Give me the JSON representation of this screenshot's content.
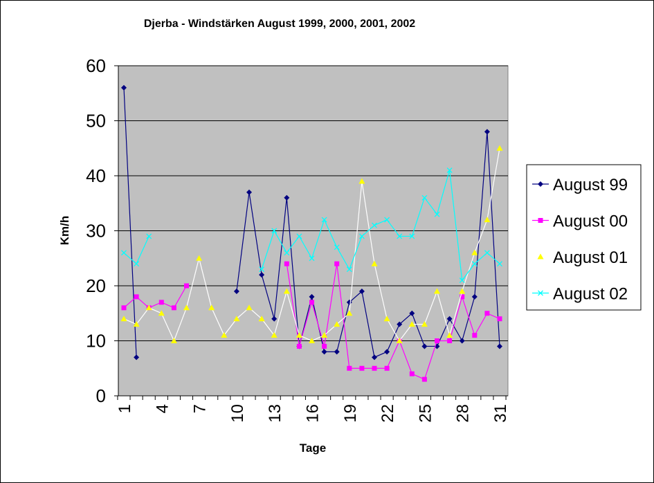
{
  "chart_data": {
    "type": "line",
    "title": "Djerba - Windstärken August 1999, 2000, 2001, 2002",
    "xlabel": "Tage",
    "ylabel": "Km/h",
    "ylim": [
      0,
      60
    ],
    "yticks": [
      "0",
      "10",
      "20",
      "30",
      "40",
      "50",
      "60"
    ],
    "xlim": [
      1,
      31
    ],
    "xtick_labels": [
      "1",
      "4",
      "7",
      "10",
      "13",
      "16",
      "19",
      "22",
      "25",
      "28",
      "31"
    ],
    "grid": "horizontal",
    "plot_background": "#C0C0C0",
    "legend_position": "right",
    "series": [
      {
        "name": "August 99",
        "color": "#000080",
        "line_color": "#000080",
        "marker": "diamond",
        "points": [
          [
            1,
            56
          ],
          [
            2,
            7
          ],
          [
            10,
            19
          ],
          [
            11,
            37
          ],
          [
            12,
            22
          ],
          [
            13,
            14
          ],
          [
            14,
            36
          ],
          [
            15,
            9
          ],
          [
            16,
            18
          ],
          [
            17,
            8
          ],
          [
            18,
            8
          ],
          [
            19,
            17
          ],
          [
            20,
            19
          ],
          [
            21,
            7
          ],
          [
            22,
            8
          ],
          [
            23,
            13
          ],
          [
            24,
            15
          ],
          [
            25,
            9
          ],
          [
            26,
            9
          ],
          [
            27,
            14
          ],
          [
            28,
            10
          ],
          [
            29,
            18
          ],
          [
            30,
            48
          ],
          [
            31,
            9
          ]
        ]
      },
      {
        "name": "August 00",
        "color": "#FF00FF",
        "line_color": "#FF00FF",
        "marker": "square",
        "points": [
          [
            1,
            16
          ],
          [
            2,
            18
          ],
          [
            3,
            16
          ],
          [
            4,
            17
          ],
          [
            5,
            16
          ],
          [
            6,
            20
          ],
          [
            14,
            24
          ],
          [
            15,
            9
          ],
          [
            16,
            17
          ],
          [
            17,
            9
          ],
          [
            18,
            24
          ],
          [
            19,
            5
          ],
          [
            20,
            5
          ],
          [
            21,
            5
          ],
          [
            22,
            5
          ],
          [
            23,
            10
          ],
          [
            24,
            4
          ],
          [
            25,
            3
          ],
          [
            26,
            10
          ],
          [
            27,
            10
          ],
          [
            28,
            18
          ],
          [
            29,
            11
          ],
          [
            30,
            15
          ],
          [
            31,
            14
          ]
        ]
      },
      {
        "name": "August 01",
        "color": "#FFFF00",
        "line_color": "#FFFFFF",
        "marker": "triangle",
        "points": [
          [
            1,
            14
          ],
          [
            2,
            13
          ],
          [
            3,
            16
          ],
          [
            4,
            15
          ],
          [
            5,
            10
          ],
          [
            6,
            16
          ],
          [
            7,
            25
          ],
          [
            8,
            16
          ],
          [
            9,
            11
          ],
          [
            10,
            14
          ],
          [
            11,
            16
          ],
          [
            12,
            14
          ],
          [
            13,
            11
          ],
          [
            14,
            19
          ],
          [
            15,
            11
          ],
          [
            16,
            10
          ],
          [
            17,
            11
          ],
          [
            18,
            13
          ],
          [
            19,
            15
          ],
          [
            20,
            39
          ],
          [
            21,
            24
          ],
          [
            22,
            14
          ],
          [
            23,
            10
          ],
          [
            24,
            13
          ],
          [
            25,
            13
          ],
          [
            26,
            19
          ],
          [
            27,
            11
          ],
          [
            28,
            19
          ],
          [
            29,
            26
          ],
          [
            30,
            32
          ],
          [
            31,
            45
          ]
        ]
      },
      {
        "name": "August 02",
        "color": "#00FFFF",
        "line_color": "#00FFFF",
        "marker": "x",
        "points": [
          [
            1,
            26
          ],
          [
            2,
            24
          ],
          [
            3,
            29
          ],
          [
            12,
            23
          ],
          [
            13,
            30
          ],
          [
            14,
            26
          ],
          [
            15,
            29
          ],
          [
            16,
            25
          ],
          [
            17,
            32
          ],
          [
            18,
            27
          ],
          [
            19,
            23
          ],
          [
            20,
            29
          ],
          [
            21,
            31
          ],
          [
            22,
            32
          ],
          [
            23,
            29
          ],
          [
            24,
            29
          ],
          [
            25,
            36
          ],
          [
            26,
            33
          ],
          [
            27,
            41
          ],
          [
            28,
            21
          ],
          [
            29,
            24
          ],
          [
            30,
            26
          ],
          [
            31,
            24
          ]
        ]
      }
    ]
  }
}
